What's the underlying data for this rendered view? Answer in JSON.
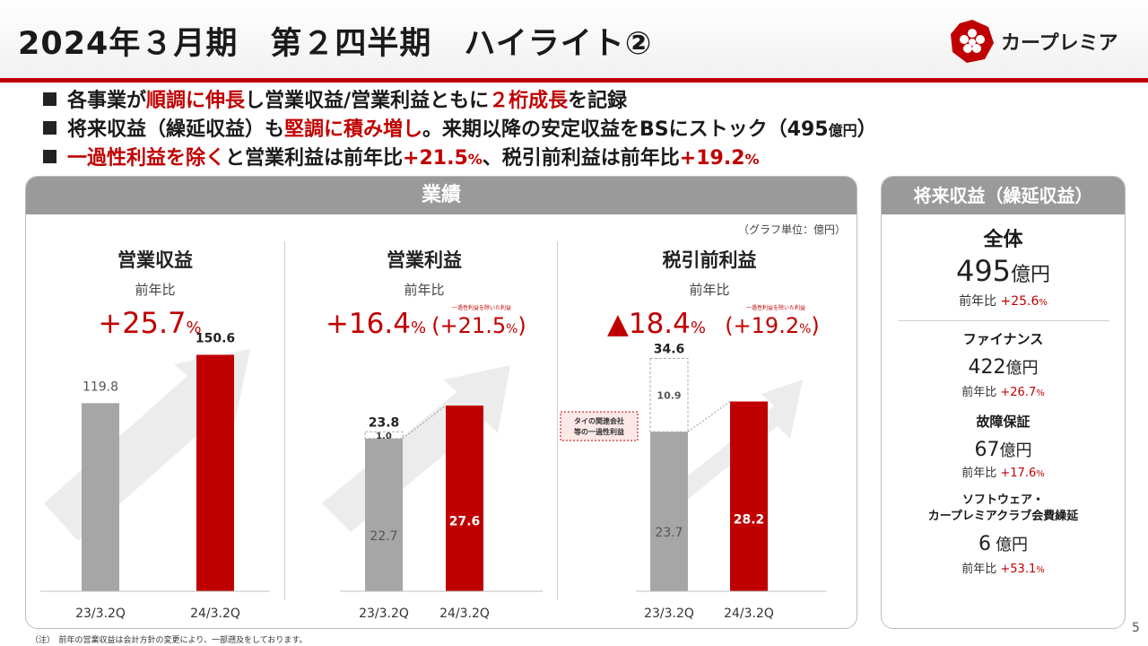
{
  "header": {
    "title": "2024年３月期　第２四半期　ハイライト②",
    "logo_text": "カープレミア"
  },
  "bullets": [
    {
      "p1": "各事業が",
      "r1": "順調に伸長",
      "p2": "し営業収益/営業利益ともに",
      "r2": "２桁成長",
      "p3": "を記録"
    },
    {
      "p1": "将来収益（繰延収益）も",
      "r1": "堅調に積み増し",
      "p2": "。来期以降の安定収益をBSにストック（495",
      "s1": "億円",
      "p3": "）"
    },
    {
      "r1": "一過性利益を除く",
      "p1": "と営業利益は前年比",
      "r2": "+21.5",
      "rs2": "%",
      "p2": "、税引前利益は前年比",
      "r3": "+19.2",
      "rs3": "%"
    }
  ],
  "main_panel": {
    "title": "業績",
    "unit_note": "（グラフ単位：億円）"
  },
  "chart_data": [
    {
      "type": "bar",
      "title": "営業収益",
      "subtitle": "前年比",
      "growth": "+25.7",
      "growth_unit": "%",
      "categories": [
        "23/3.2Q",
        "24/3.2Q"
      ],
      "values": [
        119.8,
        150.6
      ],
      "labels": [
        "119.8",
        "150.6"
      ],
      "ylim": [
        0,
        200
      ]
    },
    {
      "type": "bar",
      "title": "営業利益",
      "subtitle": "前年比",
      "growth": "+16.4",
      "growth_unit": "%",
      "adjusted_note": "一過性利益を除いた利益",
      "adjusted_growth": "(+21.5",
      "adjusted_unit": "%",
      "adjusted_close": ")",
      "categories": [
        "23/3.2Q",
        "24/3.2Q"
      ],
      "series": [
        {
          "name": "base",
          "values": [
            22.7,
            27.6
          ]
        },
        {
          "name": "one-time",
          "values": [
            1.0,
            0
          ]
        }
      ],
      "totals": [
        23.8,
        27.6
      ],
      "labels": {
        "total": "23.8",
        "base": "22.7",
        "one_time": "1.0",
        "current": "27.6"
      },
      "ylim": [
        0,
        45
      ]
    },
    {
      "type": "bar",
      "title": "税引前利益",
      "subtitle": "前年比",
      "growth": "▲18.4",
      "growth_unit": "%",
      "adjusted_note": "一過性利益を除いた利益",
      "adjusted_growth": "(+19.2",
      "adjusted_unit": "%",
      "adjusted_close": ")",
      "callout": [
        "タイの関連会社",
        "等の一過性利益"
      ],
      "categories": [
        "23/3.2Q",
        "24/3.2Q"
      ],
      "series": [
        {
          "name": "base",
          "values": [
            23.7,
            28.2
          ]
        },
        {
          "name": "one-time",
          "values": [
            10.9,
            0
          ]
        }
      ],
      "totals": [
        34.6,
        28.2
      ],
      "labels": {
        "total": "34.6",
        "base": "23.7",
        "one_time": "10.9",
        "current": "28.2"
      },
      "ylim": [
        0,
        45
      ]
    }
  ],
  "side_panel": {
    "title": "将来収益（繰延収益）",
    "total": {
      "label": "全体",
      "value": "495",
      "unit": "億円",
      "yoy_label": "前年比",
      "yoy": "+25.6",
      "yoy_unit": "%"
    },
    "items": [
      {
        "label": "ファイナンス",
        "value": "422",
        "unit": "億円",
        "yoy_label": "前年比",
        "yoy": "+26.7",
        "yoy_unit": "%"
      },
      {
        "label": "故障保証",
        "value": "67",
        "unit": "億円",
        "yoy_label": "前年比",
        "yoy": "+17.6",
        "yoy_unit": "%"
      },
      {
        "label": "ソフトウェア・",
        "label2": "カープレミアクラブ会費繰延",
        "value": "6",
        "unit": "億円",
        "yoy_label": "前年比",
        "yoy": "+53.1",
        "yoy_unit": "%"
      }
    ]
  },
  "footnote": "（注）　前年の営業収益は会計方針の変更により、一部遡及をしております。",
  "page_number": "5",
  "colors": {
    "red": "#c00000",
    "gray_bar": "#a6a6a6",
    "band": "#9a9a9a",
    "arrow": "#ececec"
  }
}
